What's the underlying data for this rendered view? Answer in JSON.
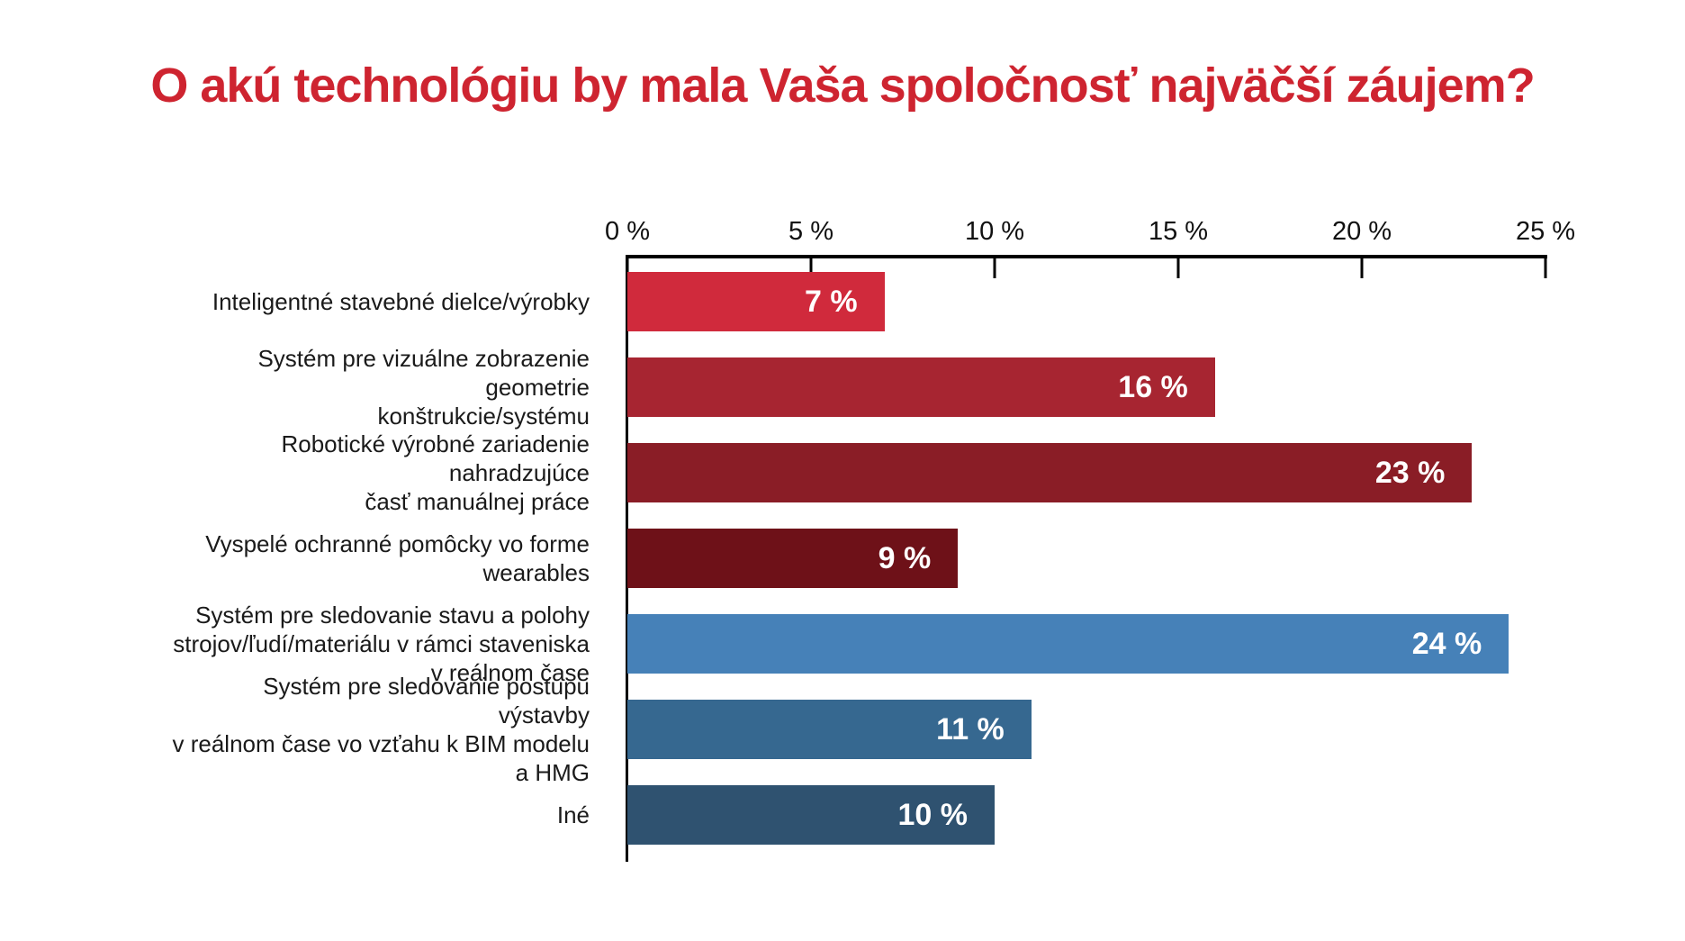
{
  "title": "O akú technológiu by mala Vaša spoločnosť najväčší záujem?",
  "title_color": "#CE2430",
  "chart_data": {
    "type": "bar",
    "orientation": "horizontal",
    "title": "O akú technológiu by mala Vaša spoločnosť najväčší záujem?",
    "xlabel": "",
    "ylabel": "",
    "xlim": [
      0,
      25
    ],
    "grid": false,
    "legend": false,
    "x_ticks": [
      {
        "value": 0,
        "label": "0 %"
      },
      {
        "value": 5,
        "label": "5 %"
      },
      {
        "value": 10,
        "label": "10 %"
      },
      {
        "value": 15,
        "label": "15 %"
      },
      {
        "value": 20,
        "label": "20 %"
      },
      {
        "value": 25,
        "label": "25 %"
      }
    ],
    "bars": [
      {
        "label": "Inteligentné stavebné dielce/výrobky",
        "value": 7,
        "value_label": "7 %",
        "color": "#D02A3C"
      },
      {
        "label": "Systém pre vizuálne zobrazenie geometrie\nkonštrukcie/systému",
        "value": 16,
        "value_label": "16 %",
        "color": "#A72531"
      },
      {
        "label": "Robotické výrobné zariadenie nahradzujúce\nčasť manuálnej práce",
        "value": 23,
        "value_label": "23 %",
        "color": "#8A1D26"
      },
      {
        "label": "Vyspelé ochranné pomôcky vo forme wearables",
        "value": 9,
        "value_label": "9 %",
        "color": "#6E1118"
      },
      {
        "label": "Systém pre sledovanie stavu a polohy\nstrojov/ľudí/materiálu v rámci staveniska\nv reálnom čase",
        "value": 24,
        "value_label": "24 %",
        "color": "#4681B8"
      },
      {
        "label": "Systém pre sledovanie postupu výstavby\nv reálnom čase vo vzťahu k BIM modelu\na HMG",
        "value": 11,
        "value_label": "11 %",
        "color": "#366890"
      },
      {
        "label": "Iné",
        "value": 10,
        "value_label": "10 %",
        "color": "#2F5270"
      }
    ]
  }
}
